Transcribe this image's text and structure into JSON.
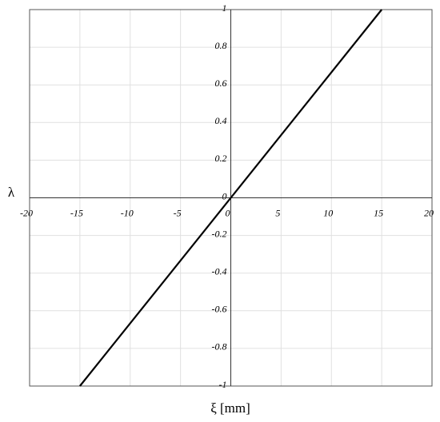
{
  "chart_data": {
    "type": "line",
    "x_label": "ξ [mm]",
    "y_label": "λ",
    "x": [
      -15,
      15
    ],
    "series": [
      {
        "color": "#000000",
        "values": [
          -1,
          1
        ]
      }
    ],
    "xlim": [
      -20,
      20
    ],
    "xticks": [
      -20,
      -15,
      -10,
      -5,
      0,
      5,
      10,
      15,
      20
    ],
    "ylim": [
      -1,
      1
    ],
    "yticks": [
      -1,
      -0.8,
      -0.6,
      -0.4,
      -0.2,
      0,
      0.2,
      0.4,
      0.6,
      0.8,
      1
    ],
    "grid": true
  }
}
